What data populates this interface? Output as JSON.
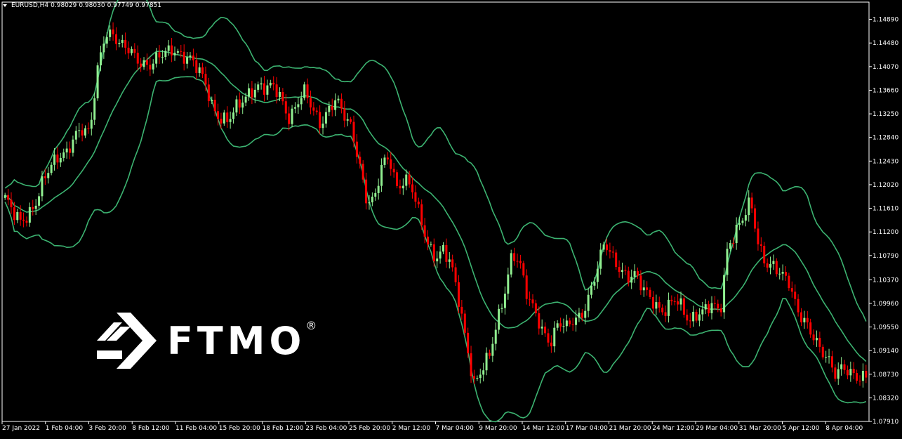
{
  "window": {
    "symbol": "EURUSD,H4",
    "ohlc": [
      "0.98029",
      "0.98030",
      "0.97749",
      "0.97851"
    ]
  },
  "watermark": {
    "text": "FTMO",
    "registered": "®"
  },
  "colors": {
    "background": "#000000",
    "bull": "#90ee90",
    "bear": "#ff0000",
    "bands": "#3cb371",
    "frame": "#ffffff"
  },
  "chart_data": {
    "type": "candlestick",
    "indicator": "Bollinger Bands",
    "y_ticks": [
      "1.14890",
      "1.14480",
      "1.14070",
      "1.13660",
      "1.13250",
      "1.12840",
      "1.12430",
      "1.12020",
      "1.11610",
      "1.11200",
      "1.10790",
      "1.10370",
      "1.09960",
      "1.09550",
      "1.09140",
      "1.08730",
      "1.08320",
      "1.07910"
    ],
    "ylim": [
      1.0791,
      1.1519
    ],
    "x_ticks": [
      "27 Jan 2022",
      "1 Feb 04:00",
      "3 Feb 20:00",
      "8 Feb 12:00",
      "11 Feb 04:00",
      "15 Feb 20:00",
      "18 Feb 12:00",
      "23 Feb 04:00",
      "25 Feb 20:00",
      "2 Mar 12:00",
      "7 Mar 04:00",
      "9 Mar 20:00",
      "14 Mar 12:00",
      "17 Mar 04:00",
      "21 Mar 20:00",
      "24 Mar 12:00",
      "29 Mar 04:00",
      "31 Mar 20:00",
      "5 Apr 12:00",
      "8 Apr 04:00"
    ],
    "close_path": [
      1.118,
      1.115,
      1.1135,
      1.1152,
      1.1175,
      1.121,
      1.123,
      1.125,
      1.1262,
      1.129,
      1.1295,
      1.1285,
      1.14,
      1.147,
      1.1465,
      1.144,
      1.1435,
      1.1425,
      1.1415,
      1.141,
      1.142,
      1.143,
      1.144,
      1.143,
      1.142,
      1.14,
      1.138,
      1.134,
      1.132,
      1.131,
      1.133,
      1.135,
      1.137,
      1.1375,
      1.1365,
      1.137,
      1.135,
      1.132,
      1.1345,
      1.136,
      1.133,
      1.131,
      1.1335,
      1.135,
      1.132,
      1.13,
      1.125,
      1.118,
      1.117,
      1.123,
      1.125,
      1.12,
      1.1215,
      1.119,
      1.114,
      1.11,
      1.108,
      1.109,
      1.106,
      1.1,
      1.093,
      1.086,
      1.088,
      1.09,
      1.096,
      1.102,
      1.109,
      1.106,
      1.1,
      1.098,
      1.095,
      1.093,
      1.096,
      1.095,
      1.097,
      1.098,
      1.101,
      1.105,
      1.11,
      1.108,
      1.106,
      1.104,
      1.104,
      1.102,
      1.101,
      1.099,
      1.098,
      1.1,
      1.099,
      1.097,
      1.098,
      1.098,
      1.099,
      1.098,
      1.11,
      1.112,
      1.114,
      1.117,
      1.11,
      1.107,
      1.106,
      1.104,
      1.103,
      1.099,
      1.097,
      1.094,
      1.091,
      1.09,
      1.088,
      1.089,
      1.087,
      1.086,
      1.087
    ]
  }
}
